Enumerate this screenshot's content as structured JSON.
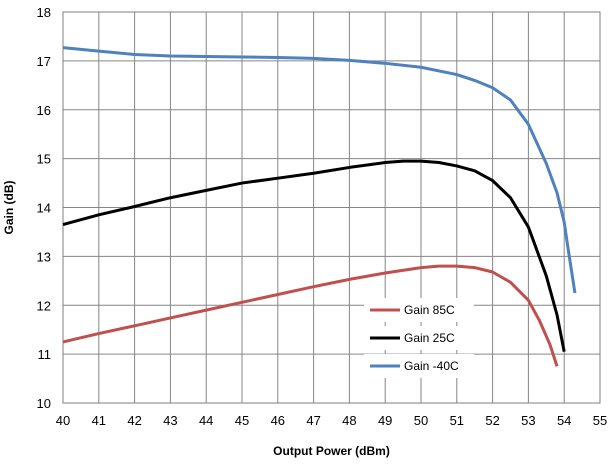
{
  "chart_data": {
    "type": "line",
    "xlabel": "Output Power (dBm)",
    "ylabel": "Gain (dB)",
    "xlim": [
      40,
      55
    ],
    "ylim": [
      10,
      18
    ],
    "xticks": [
      "40",
      "41",
      "42",
      "43",
      "44",
      "45",
      "46",
      "47",
      "48",
      "49",
      "50",
      "51",
      "52",
      "53",
      "54",
      "55"
    ],
    "yticks": [
      "10",
      "11",
      "12",
      "13",
      "14",
      "15",
      "16",
      "17",
      "18"
    ],
    "grid": true,
    "legend_position": "bottom-right",
    "series": [
      {
        "name": "Gain 85C",
        "color": "#c0504d",
        "points": [
          [
            40,
            11.25
          ],
          [
            41,
            11.42
          ],
          [
            42,
            11.58
          ],
          [
            43,
            11.74
          ],
          [
            44,
            11.9
          ],
          [
            45,
            12.06
          ],
          [
            46,
            12.22
          ],
          [
            47,
            12.38
          ],
          [
            48,
            12.53
          ],
          [
            49,
            12.66
          ],
          [
            50,
            12.77
          ],
          [
            50.5,
            12.8
          ],
          [
            51,
            12.8
          ],
          [
            51.5,
            12.77
          ],
          [
            52,
            12.68
          ],
          [
            52.5,
            12.47
          ],
          [
            53,
            12.1
          ],
          [
            53.3,
            11.7
          ],
          [
            53.6,
            11.2
          ],
          [
            53.8,
            10.75
          ]
        ]
      },
      {
        "name": "Gain 25C",
        "color": "#000000",
        "points": [
          [
            40,
            13.65
          ],
          [
            41,
            13.85
          ],
          [
            42,
            14.02
          ],
          [
            43,
            14.2
          ],
          [
            44,
            14.35
          ],
          [
            45,
            14.5
          ],
          [
            46,
            14.6
          ],
          [
            47,
            14.7
          ],
          [
            48,
            14.82
          ],
          [
            49,
            14.92
          ],
          [
            49.5,
            14.95
          ],
          [
            50,
            14.95
          ],
          [
            50.5,
            14.92
          ],
          [
            51,
            14.85
          ],
          [
            51.5,
            14.75
          ],
          [
            52,
            14.55
          ],
          [
            52.5,
            14.2
          ],
          [
            53,
            13.6
          ],
          [
            53.5,
            12.6
          ],
          [
            53.8,
            11.8
          ],
          [
            54,
            11.05
          ]
        ]
      },
      {
        "name": "Gain -40C",
        "color": "#4f81bd",
        "points": [
          [
            40,
            17.27
          ],
          [
            41,
            17.2
          ],
          [
            42,
            17.13
          ],
          [
            43,
            17.1
          ],
          [
            44,
            17.09
          ],
          [
            45,
            17.08
          ],
          [
            46,
            17.07
          ],
          [
            47,
            17.05
          ],
          [
            48,
            17.01
          ],
          [
            49,
            16.95
          ],
          [
            50,
            16.87
          ],
          [
            51,
            16.72
          ],
          [
            51.5,
            16.6
          ],
          [
            52,
            16.45
          ],
          [
            52.5,
            16.2
          ],
          [
            53,
            15.7
          ],
          [
            53.5,
            14.9
          ],
          [
            53.8,
            14.3
          ],
          [
            54,
            13.7
          ],
          [
            54.1,
            13.2
          ],
          [
            54.3,
            12.25
          ]
        ]
      }
    ]
  }
}
